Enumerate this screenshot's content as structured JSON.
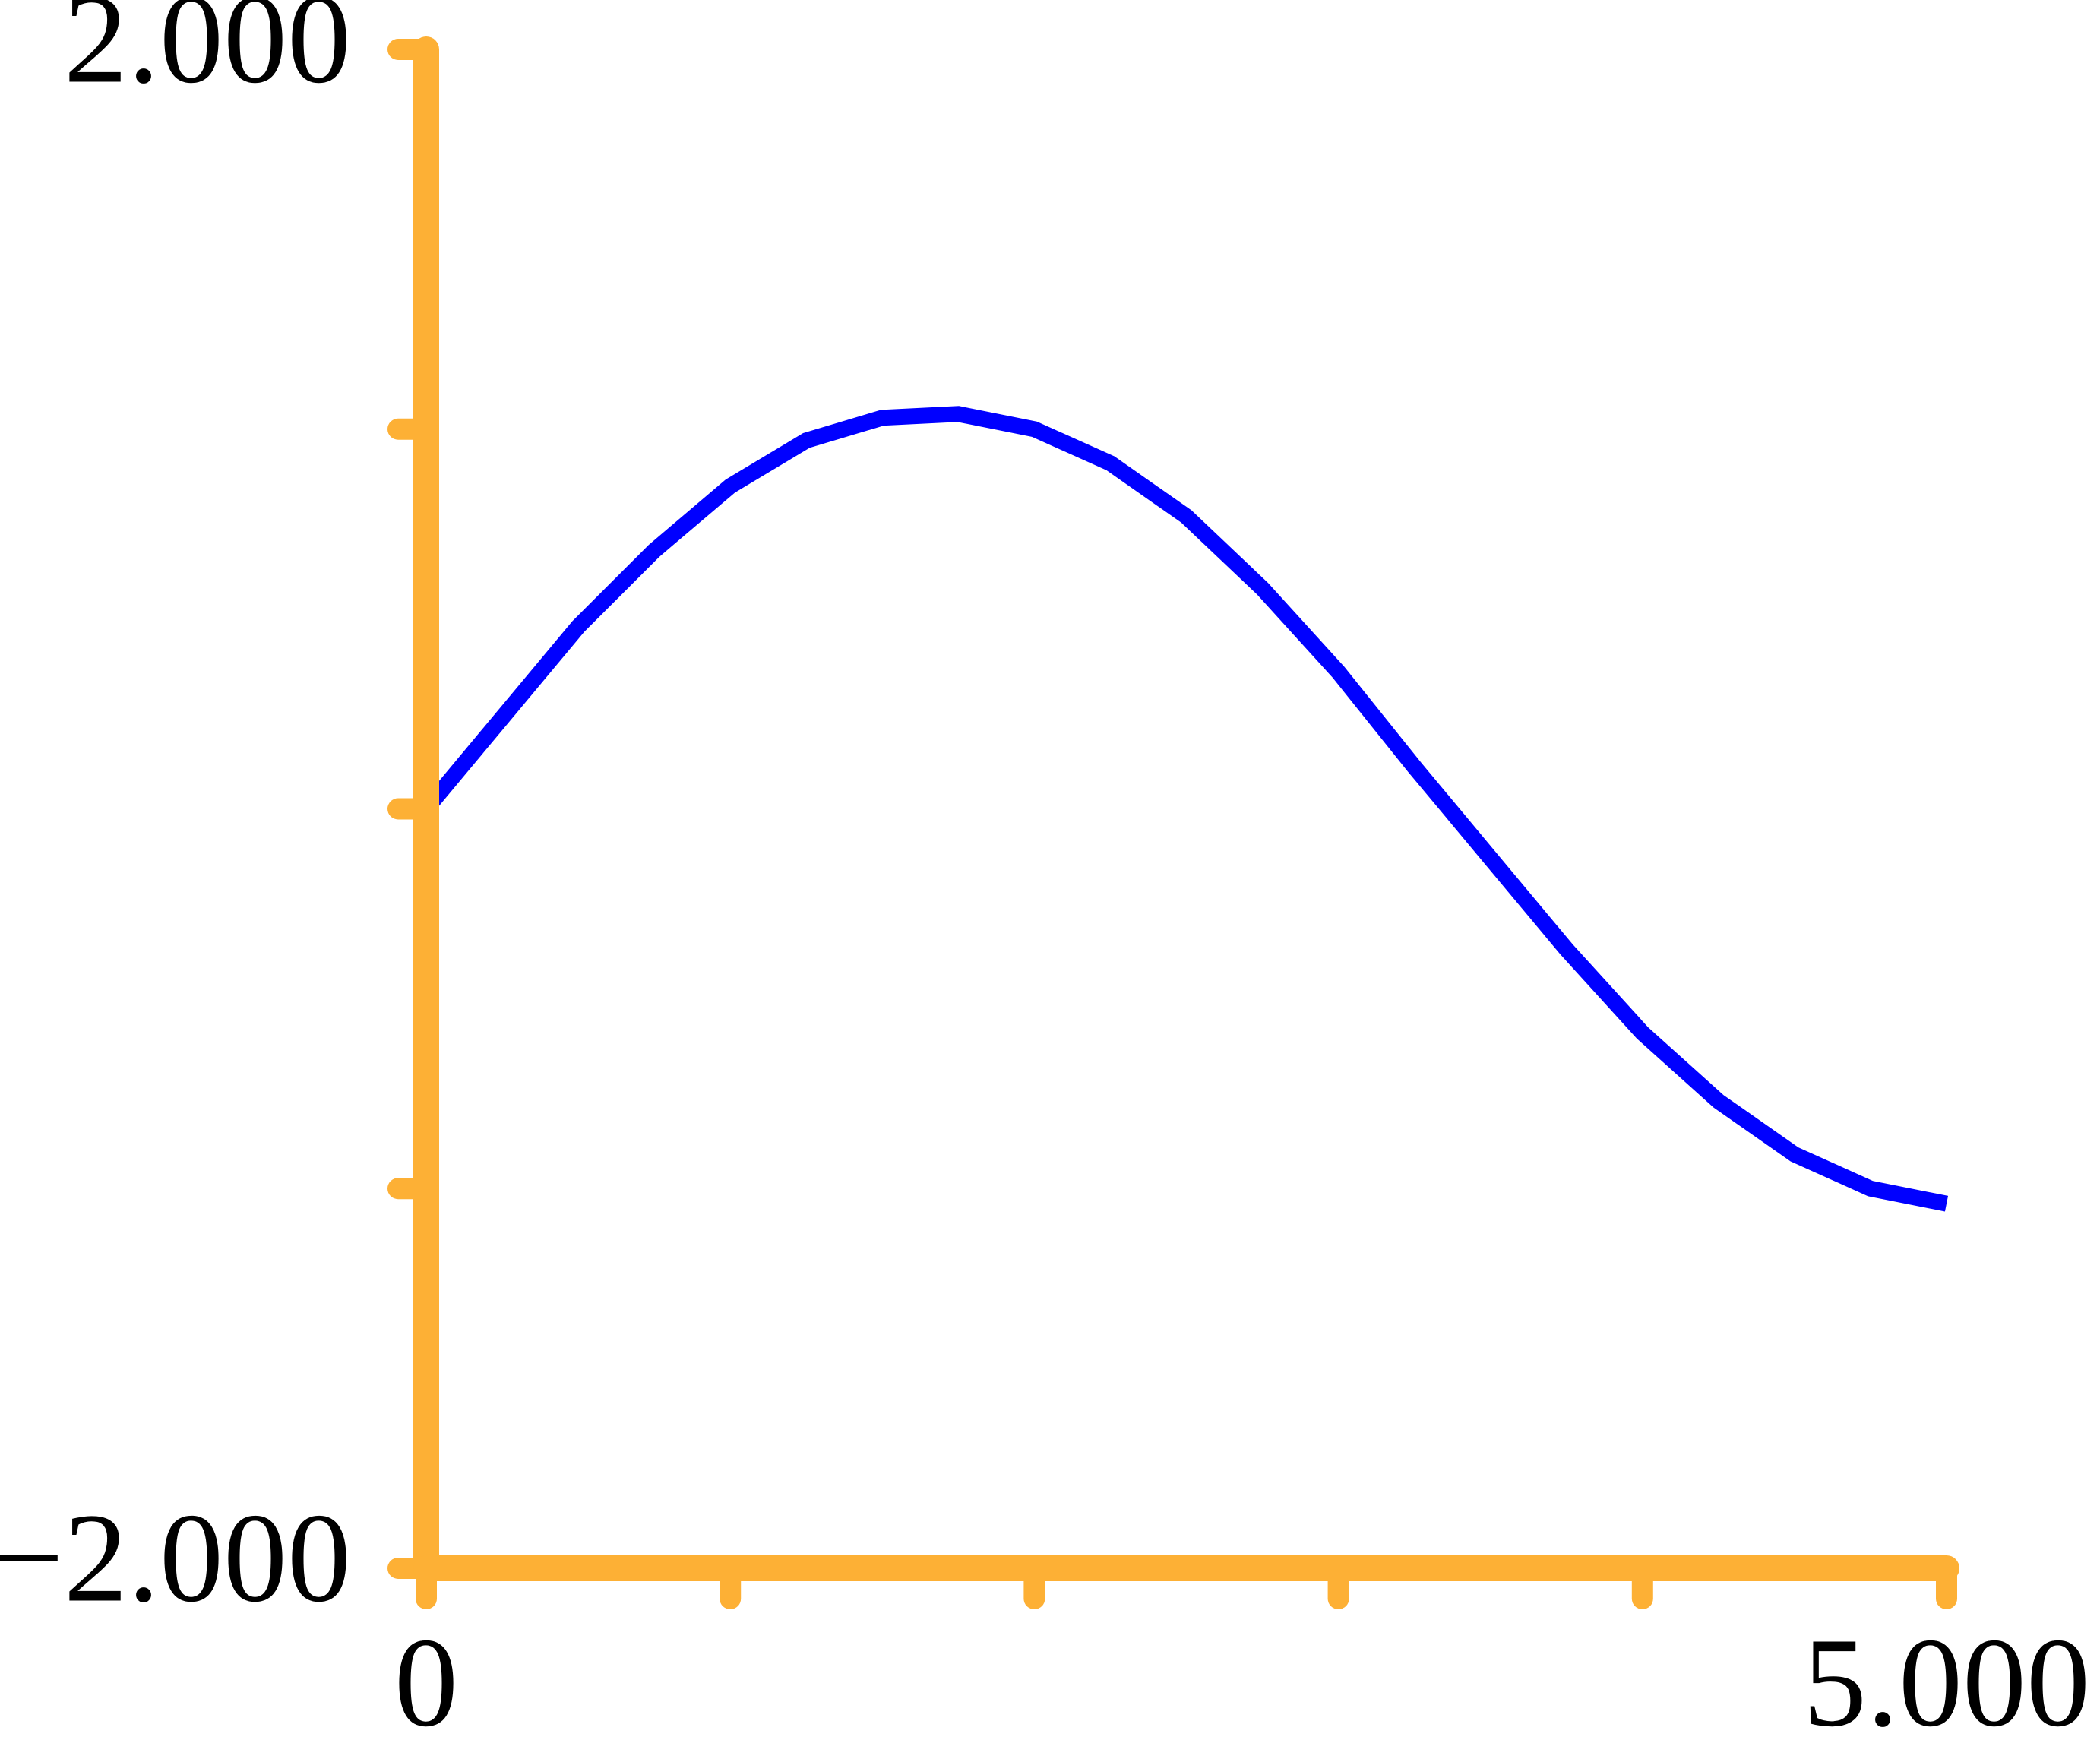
{
  "chart_data": {
    "type": "line",
    "x": [
      0,
      0.25,
      0.5,
      0.75,
      1,
      1.25,
      1.5,
      1.75,
      2,
      2.25,
      2.5,
      2.75,
      3,
      3.25,
      3.5,
      3.75,
      4,
      4.25,
      4.5,
      4.75,
      5
    ],
    "series": [
      {
        "color": "#0000ff",
        "values": [
          0,
          0.24,
          0.48,
          0.68,
          0.85,
          0.97,
          1.03,
          1.04,
          1.0,
          0.91,
          0.77,
          0.58,
          0.36,
          0.11,
          -0.13,
          -0.37,
          -0.59,
          -0.77,
          -0.91,
          -1.0,
          -1.04
        ]
      }
    ],
    "xlim": [
      0,
      5
    ],
    "ylim": [
      -2,
      2
    ],
    "xticks": [
      {
        "value": 0,
        "label": "0"
      },
      1,
      2,
      3,
      4,
      {
        "value": 5,
        "label": "5.000"
      }
    ],
    "yticks": [
      {
        "value": -2,
        "label": "−2.000"
      },
      -1,
      0,
      1,
      {
        "value": 2,
        "label": "2.000"
      }
    ],
    "axis_color": "#fdb035"
  }
}
